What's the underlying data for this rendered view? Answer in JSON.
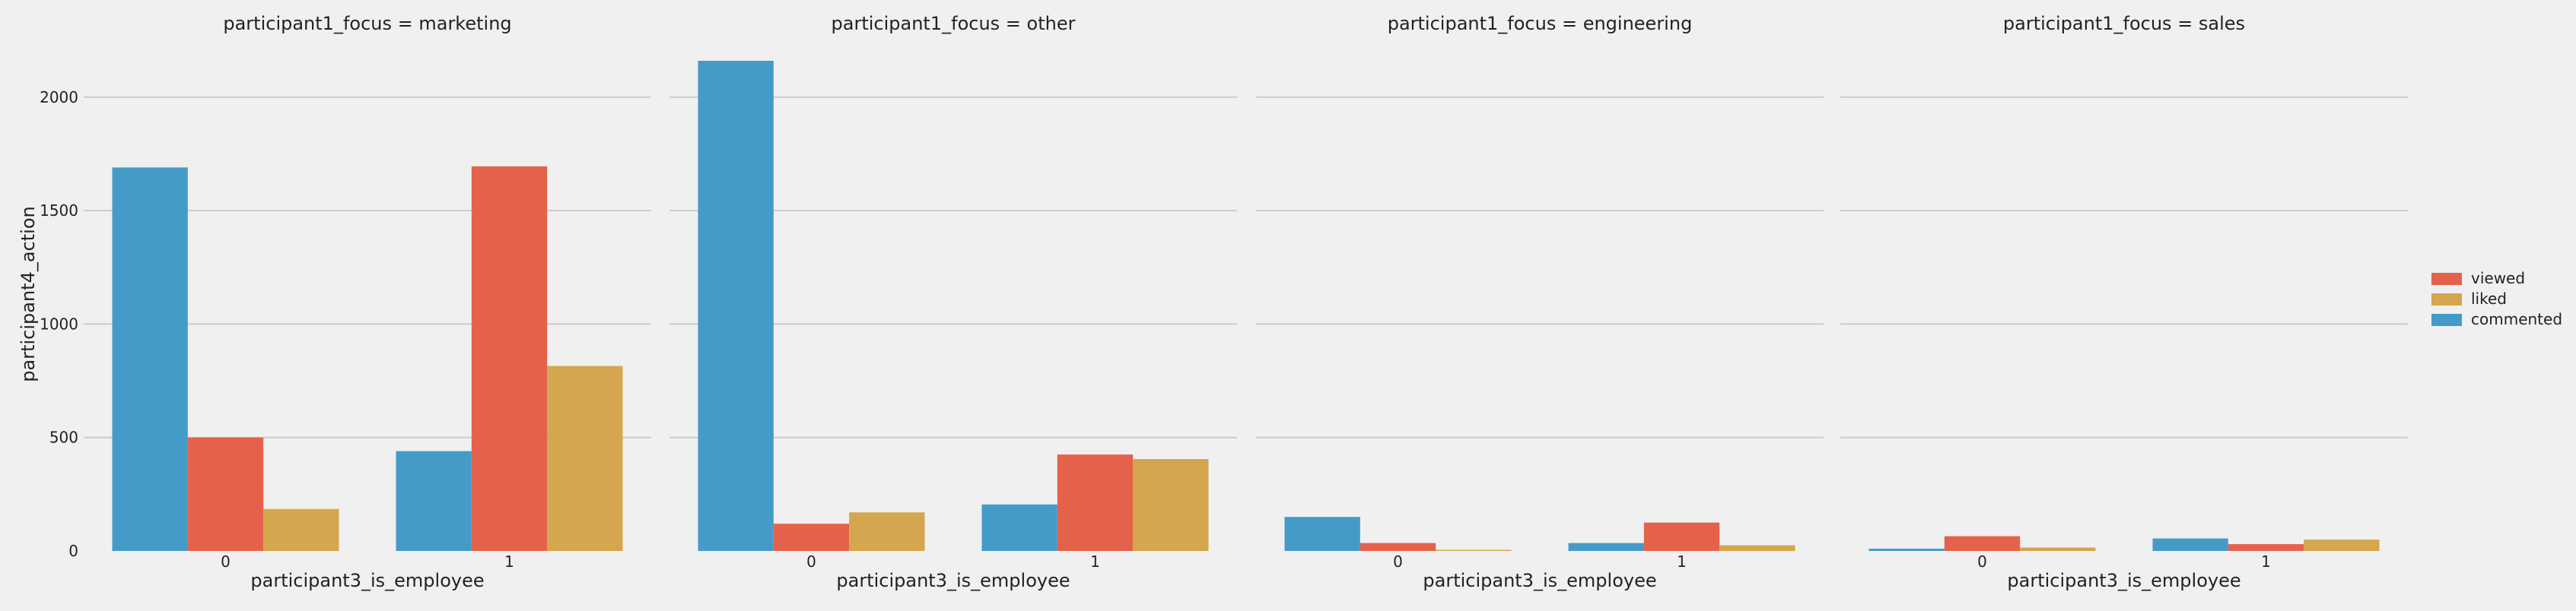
{
  "chart_data": {
    "type": "bar",
    "facet_label": "participant1_focus",
    "facets": [
      "marketing",
      "other",
      "engineering",
      "sales"
    ],
    "facet_titles": [
      "participant1_focus = marketing",
      "participant1_focus = other",
      "participant1_focus = engineering",
      "participant1_focus = sales"
    ],
    "categories": [
      "0",
      "1"
    ],
    "xlabel": "participant3_is_employee",
    "ylabel": "participant4_action",
    "yticks": [
      0,
      500,
      1000,
      1500,
      2000
    ],
    "ylim": [
      0,
      2160
    ],
    "grid": true,
    "legend_position": "right",
    "legend_order": [
      "viewed",
      "liked",
      "commented"
    ],
    "hue_order": [
      "commented",
      "viewed",
      "liked"
    ],
    "colors": {
      "commented": "#459bc8",
      "viewed": "#e4624b",
      "liked": "#d4a64d"
    },
    "series": {
      "marketing": {
        "commented": [
          1690,
          440
        ],
        "viewed": [
          500,
          1695
        ],
        "liked": [
          185,
          815
        ]
      },
      "other": {
        "commented": [
          2160,
          205
        ],
        "viewed": [
          120,
          425
        ],
        "liked": [
          170,
          405
        ]
      },
      "engineering": {
        "commented": [
          150,
          35
        ],
        "viewed": [
          35,
          125
        ],
        "liked": [
          5,
          25
        ]
      },
      "sales": {
        "commented": [
          10,
          55
        ],
        "viewed": [
          65,
          30
        ],
        "liked": [
          15,
          50
        ]
      }
    }
  }
}
